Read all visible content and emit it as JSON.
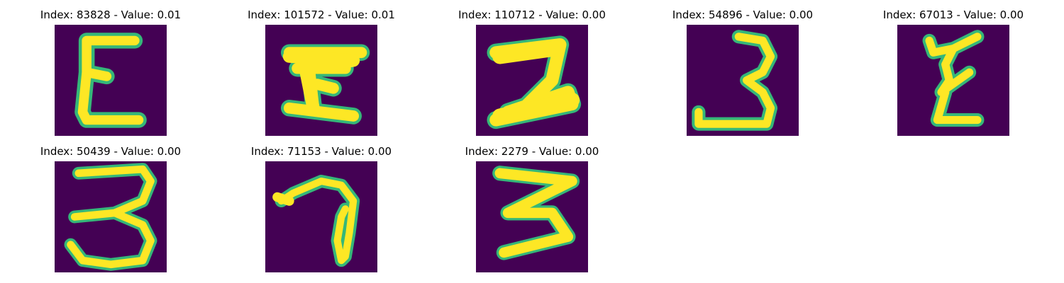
{
  "figure": {
    "background_color": "#440154",
    "stroke_color": "#fde725",
    "edge_color": "#35b779",
    "colormap": "viridis"
  },
  "panels": [
    {
      "title": "Index: 83828 - Value: 0.01",
      "glyph": "epsilon-like-digit"
    },
    {
      "title": "Index: 101572 - Value: 0.01",
      "glyph": "rotated-h-like-digit"
    },
    {
      "title": "Index: 110712 - Value: 0.00",
      "glyph": "z-like-digit"
    },
    {
      "title": "Index: 54896 - Value: 0.00",
      "glyph": "digit-three"
    },
    {
      "title": "Index: 67013 - Value: 0.00",
      "glyph": "zigzag-digit"
    },
    {
      "title": "Index: 50439 - Value: 0.00",
      "glyph": "digit-three"
    },
    {
      "title": "Index: 71153 - Value: 0.00",
      "glyph": "loop-seven-like-digit"
    },
    {
      "title": "Index: 2279 - Value: 0.00",
      "glyph": "angular-three-digit"
    }
  ]
}
